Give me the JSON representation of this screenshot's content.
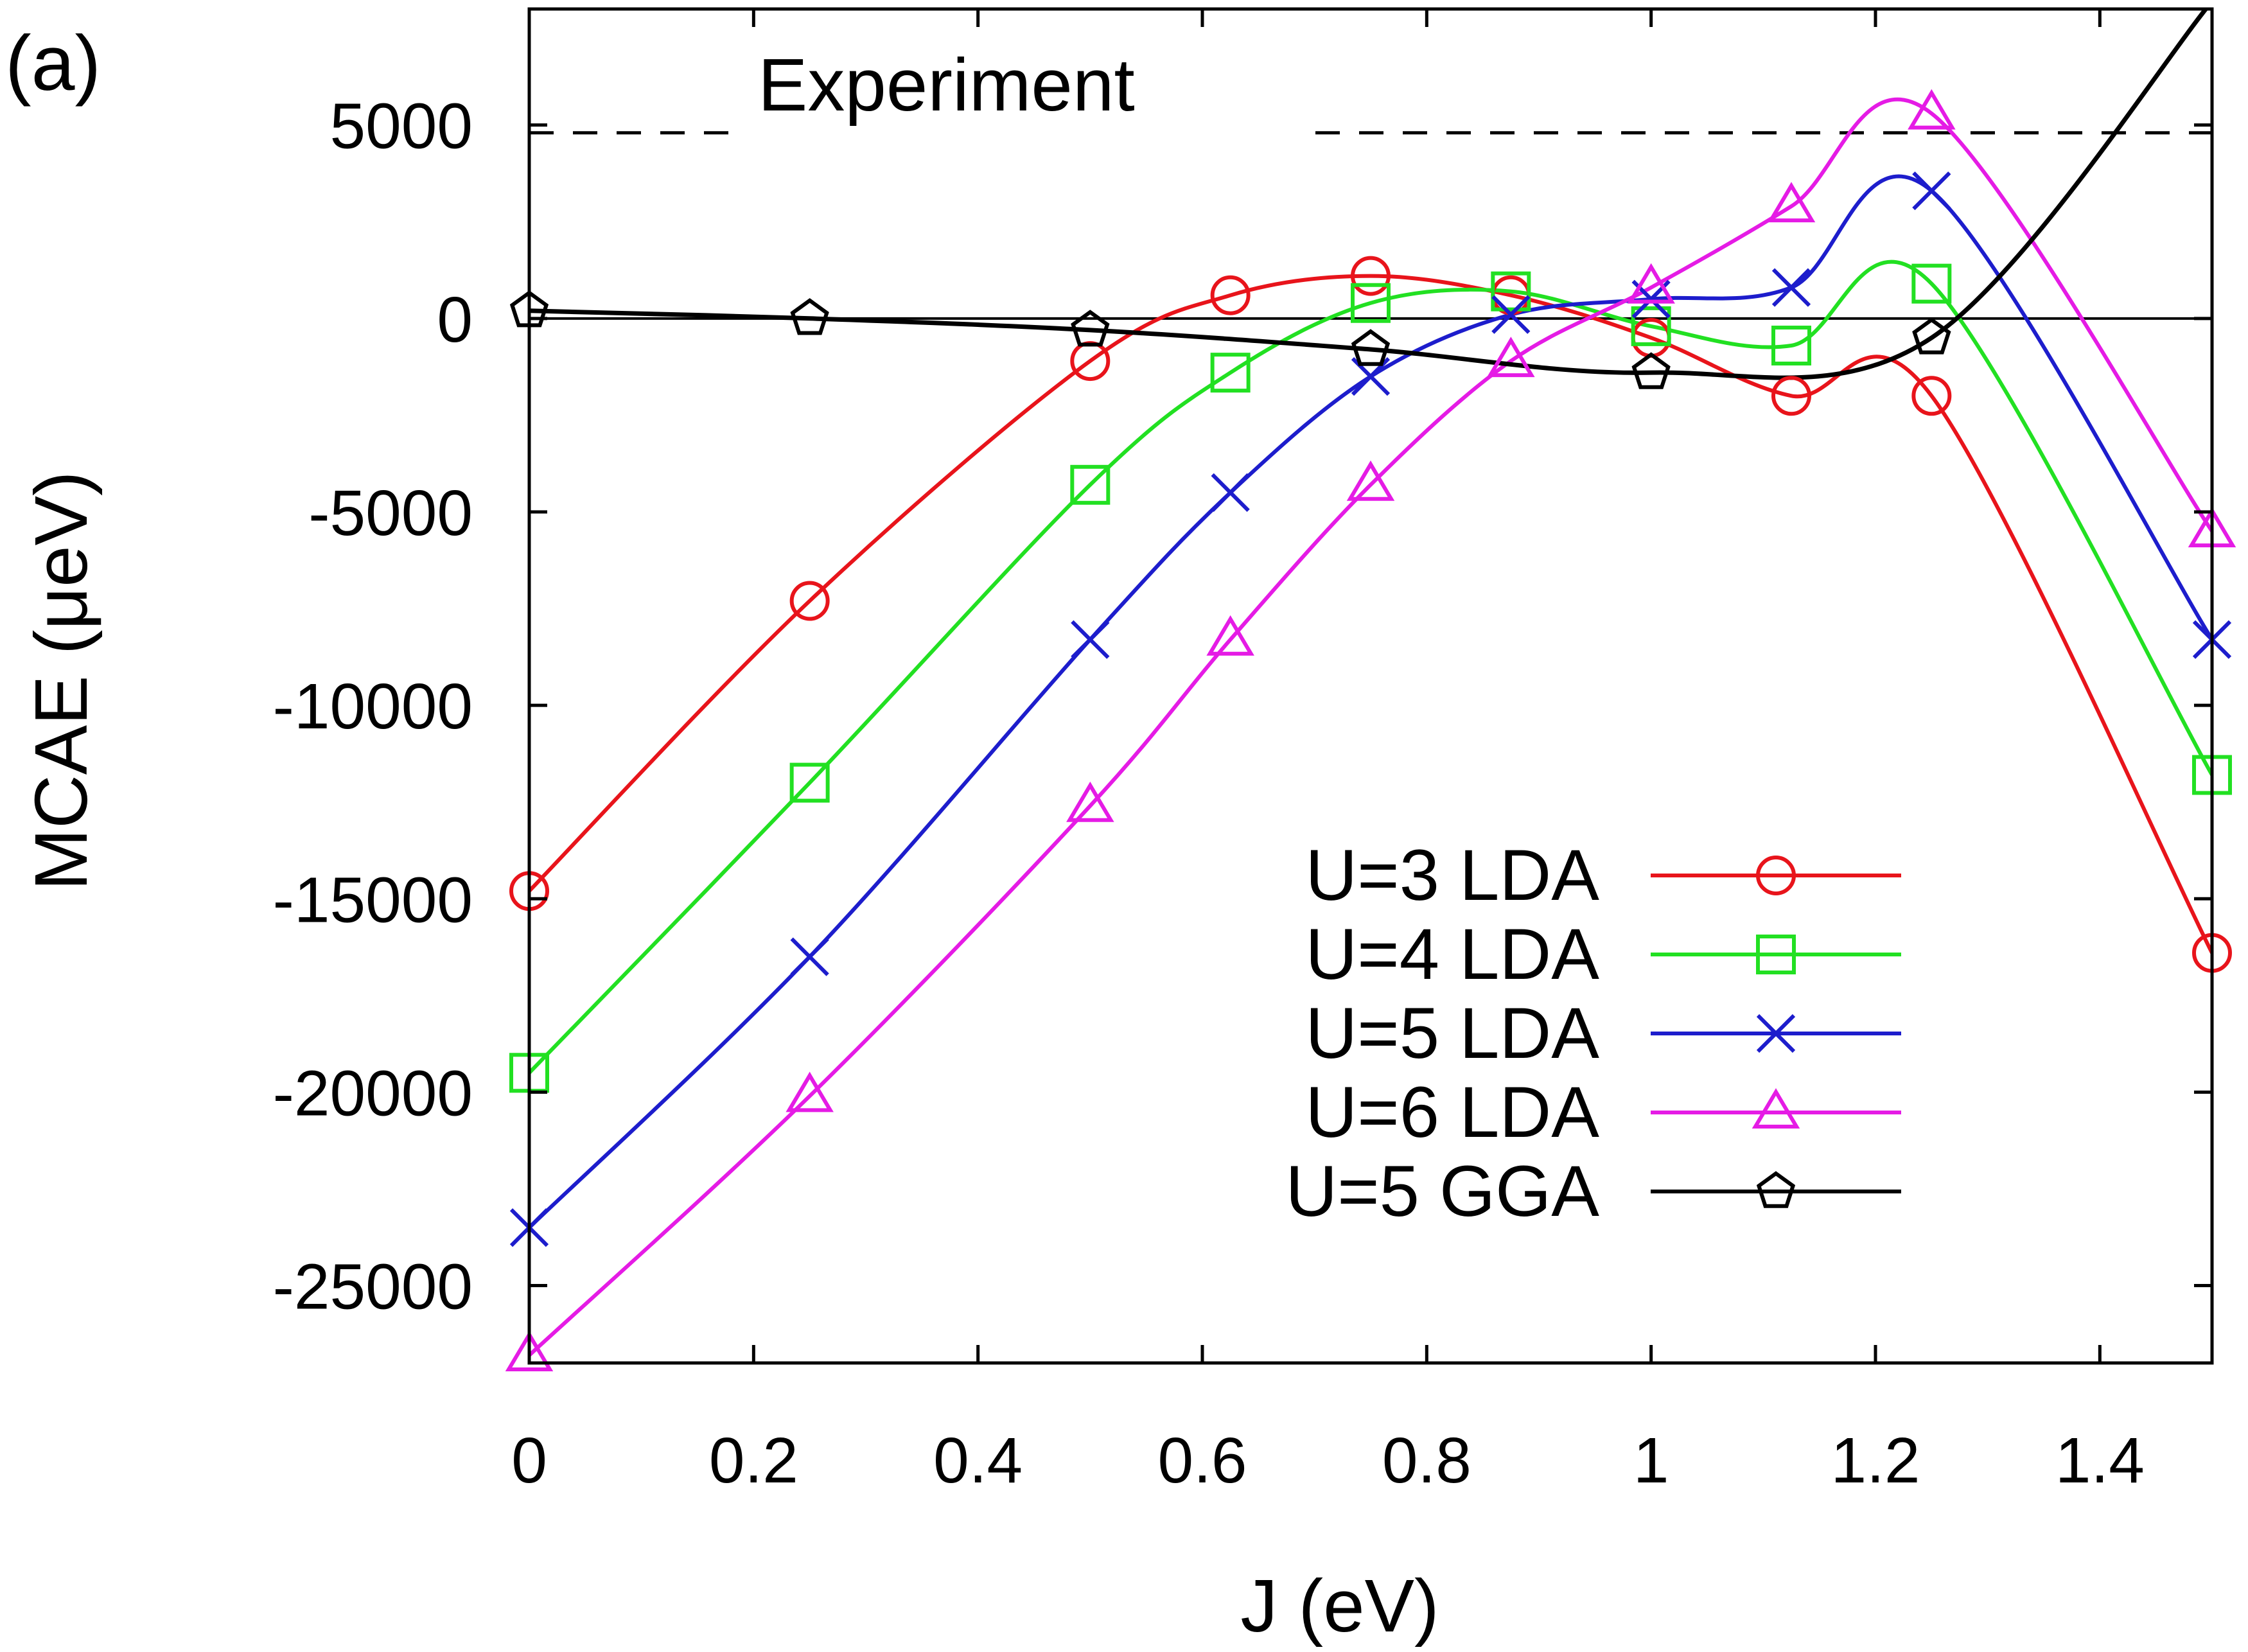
{
  "panel_label": "(a)",
  "chart_data": {
    "type": "line",
    "title": "",
    "xlabel": "J (eV)",
    "ylabel": "MCAE (μeV)",
    "xlim": [
      0,
      1.5
    ],
    "ylim": [
      -27000,
      8000
    ],
    "xticks": [
      0,
      0.2,
      0.4,
      0.6,
      0.8,
      1,
      1.2,
      1.4
    ],
    "xtick_labels": [
      "0",
      "0.2",
      "0.4",
      "0.6",
      "0.8",
      "1",
      "1.2",
      "1.4"
    ],
    "yticks": [
      -25000,
      -20000,
      -15000,
      -10000,
      -5000,
      0,
      5000
    ],
    "ytick_labels": [
      "-25000",
      "-20000",
      "-15000",
      "-10000",
      "-5000",
      "0",
      "5000"
    ],
    "reference_line": {
      "label": "Experiment",
      "y": 4800,
      "style": "dashed"
    },
    "zero_line": 0,
    "legend_position": "bottom-right",
    "series": [
      {
        "name": "U=3 LDA",
        "color": "#e8141b",
        "marker": "circle",
        "x": [
          0,
          0.25,
          0.5,
          0.625,
          0.75,
          0.875,
          1.0,
          1.125,
          1.25,
          1.5
        ],
        "y": [
          -14800,
          -7300,
          -1100,
          600,
          1100,
          600,
          -500,
          -2000,
          -2000,
          -16400
        ]
      },
      {
        "name": "U=4 LDA",
        "color": "#22e022",
        "marker": "square",
        "x": [
          0,
          0.25,
          0.5,
          0.625,
          0.75,
          0.875,
          1.0,
          1.125,
          1.25,
          1.5
        ],
        "y": [
          -19500,
          -12000,
          -4300,
          -1400,
          400,
          700,
          -200,
          -700,
          900,
          -11800
        ]
      },
      {
        "name": "U=5 LDA",
        "color": "#1d1dcc",
        "marker": "x",
        "x": [
          0,
          0.25,
          0.5,
          0.625,
          0.75,
          0.875,
          1.0,
          1.125,
          1.25,
          1.5
        ],
        "y": [
          -23500,
          -16500,
          -8300,
          -4500,
          -1500,
          100,
          500,
          800,
          3300,
          -8300
        ]
      },
      {
        "name": "U=6 LDA",
        "color": "#e51be5",
        "marker": "triangle",
        "x": [
          0,
          0.25,
          0.5,
          0.625,
          0.75,
          0.875,
          1.0,
          1.125,
          1.25,
          1.5
        ],
        "y": [
          -26800,
          -20100,
          -12600,
          -8300,
          -4300,
          -1100,
          800,
          2900,
          5300,
          -5500
        ]
      },
      {
        "name": "U=5 GGA",
        "color": "#000000",
        "marker": "pentagon",
        "x": [
          0,
          0.25,
          0.5,
          0.75,
          1.0,
          1.25
        ],
        "y": [
          200,
          0,
          -300,
          -800,
          -1400,
          -500
        ],
        "extends_beyond_axes": {
          "x": 1.5,
          "y": 8200
        }
      }
    ]
  }
}
